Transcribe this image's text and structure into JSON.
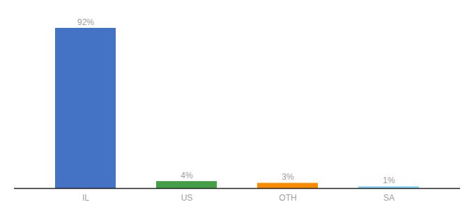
{
  "chart_data": {
    "type": "bar",
    "categories": [
      "IL",
      "US",
      "OTH",
      "SA"
    ],
    "values": [
      92,
      4,
      3,
      1
    ],
    "value_labels": [
      "92%",
      "4%",
      "3%",
      "1%"
    ],
    "colors": [
      "#4472c4",
      "#43a047",
      "#fb8c00",
      "#81d4fa"
    ],
    "ylim": [
      0,
      100
    ],
    "data_labels": true,
    "tick_labels": "x",
    "grid": false
  }
}
